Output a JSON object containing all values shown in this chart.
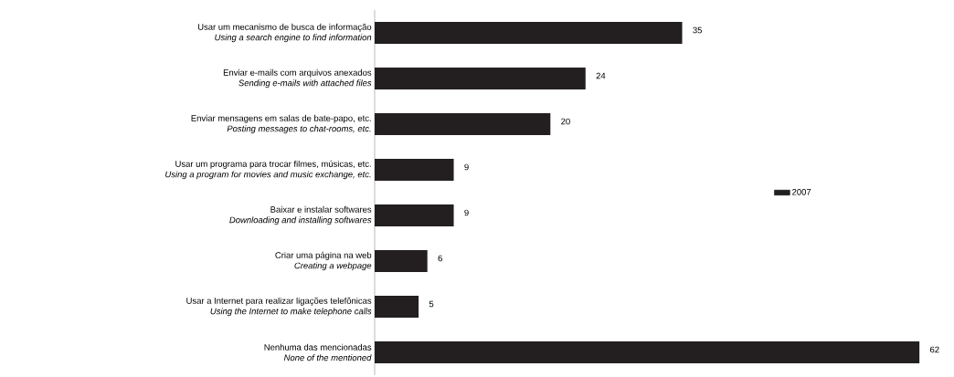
{
  "chart_data": {
    "type": "bar",
    "orientation": "horizontal",
    "categories": [
      "Usar um mecanismo de busca de informação\n*Using a search engine to find information*",
      "Enviar e-mails com arquivos anexados\n*Sending e-mails with attached files*",
      "Enviar mensagens em salas de bate-papo, etc.\n*Posting messages to chat-rooms, etc.*",
      "Usar um programa para trocar filmes, músicas, etc.\n*Using a program for movies and music exchange, etc.*",
      "Baixar e instalar softwares\n*Downloading and installing softwares*",
      "Criar uma página na web\n*Creating a webpage*",
      "Usar a Internet para realizar ligações telefônicas\n*Using the Internet to make telephone calls*",
      "Nenhuma das mencionadas\n*None of the mentioned*"
    ],
    "series": [
      {
        "name": "2007",
        "color": "#231f20",
        "values": [
          35,
          24,
          20,
          9,
          9,
          6,
          5,
          62
        ]
      }
    ],
    "data_labels": true,
    "legend": "right"
  }
}
